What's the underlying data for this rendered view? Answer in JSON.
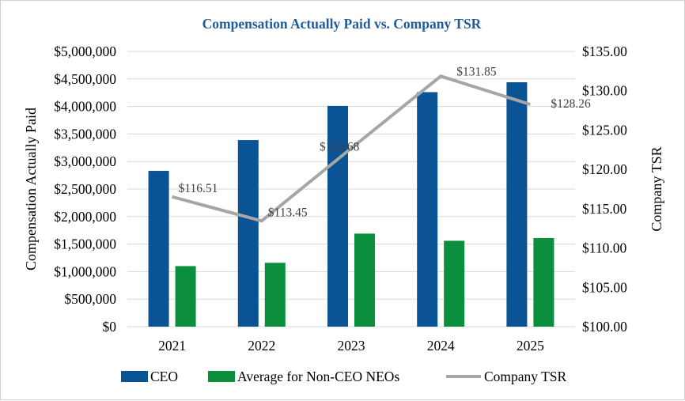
{
  "chart_data": {
    "type": "bar",
    "title": "Compensation Actually Paid vs. Company TSR",
    "xlabel": "",
    "ylabel": "Compensation Actually Paid",
    "y2label": "Company TSR",
    "categories": [
      "2021",
      "2022",
      "2023",
      "2024",
      "2025"
    ],
    "ylim": [
      0,
      5000000
    ],
    "y2lim": [
      100,
      135
    ],
    "y_ticks": [
      "$0",
      "$500,000",
      "$1,000,000",
      "$1,500,000",
      "$2,000,000",
      "$2,500,000",
      "$3,000,000",
      "$3,500,000",
      "$4,000,000",
      "$4,500,000",
      "$5,000,000"
    ],
    "y2_ticks": [
      "$100.00",
      "$105.00",
      "$110.00",
      "$115.00",
      "$120.00",
      "$125.00",
      "$130.00",
      "$135.00"
    ],
    "grid": true,
    "legend_position": "bottom",
    "series": [
      {
        "name": "CEO",
        "kind": "bar",
        "axis": "left",
        "color": "#0a5495",
        "values": [
          2830000,
          3390000,
          4010000,
          4260000,
          4440000
        ]
      },
      {
        "name": "Average for Non-CEO NEOs",
        "kind": "bar",
        "axis": "left",
        "color": "#0b8f3c",
        "values": [
          1100000,
          1160000,
          1690000,
          1560000,
          1610000
        ]
      },
      {
        "name": "Company TSR",
        "kind": "line",
        "axis": "right",
        "color": "#a6a6a6",
        "values": [
          116.51,
          113.45,
          122.68,
          131.85,
          128.26
        ],
        "labels": [
          "$116.51",
          "$113.45",
          "$122.68",
          "$131.85",
          "$128.26"
        ]
      }
    ],
    "title_color": "#1f5c99"
  }
}
